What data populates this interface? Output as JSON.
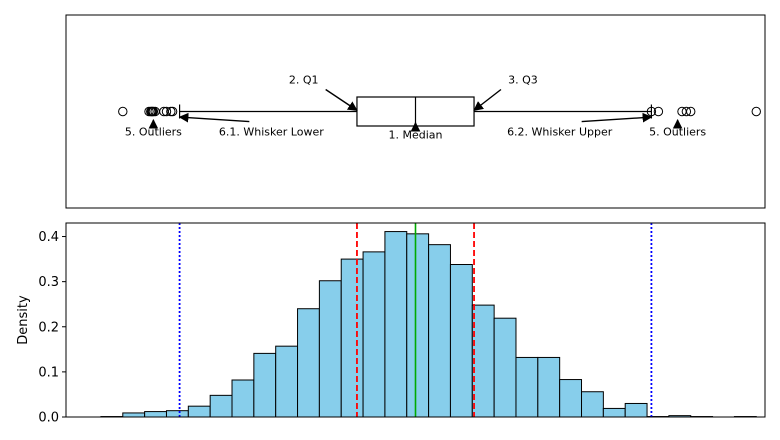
{
  "chart_data": [
    {
      "type": "box",
      "title": "",
      "xlim": [
        -4.0,
        4.0
      ],
      "y_center": 0.0,
      "box": {
        "q1": -0.67,
        "median": 0.0,
        "q3": 0.67,
        "whisker_low": -2.7,
        "whisker_high": 2.7
      },
      "outliers": [
        -3.35,
        -3.05,
        -3.03,
        -3.02,
        -3.01,
        -3.0,
        -2.98,
        -2.88,
        -2.85,
        -2.8,
        -2.78,
        2.7,
        2.78,
        3.05,
        3.1,
        3.15,
        3.9
      ],
      "annotations": [
        {
          "text": "2. Q1",
          "target": {
            "x": -0.67,
            "y": 0.02
          },
          "label": {
            "x": -1.28,
            "y": 0.5
          }
        },
        {
          "text": "3. Q3",
          "target": {
            "x": 0.67,
            "y": 0.02
          },
          "label": {
            "x": 1.23,
            "y": 0.5
          }
        },
        {
          "text": "1. Median",
          "target": {
            "x": 0.0,
            "y": -0.2
          },
          "label": {
            "x": 0.0,
            "y": -0.48
          }
        },
        {
          "text": "5. Outliers",
          "target": {
            "x": -3.0,
            "y": -0.15
          },
          "label": {
            "x": -3.0,
            "y": -0.43
          }
        },
        {
          "text": "6.1. Whisker Lower",
          "target": {
            "x": -2.7,
            "y": -0.1
          },
          "label": {
            "x": -1.65,
            "y": -0.43
          }
        },
        {
          "text": "6.2. Whisker Upper",
          "target": {
            "x": 2.7,
            "y": -0.1
          },
          "label": {
            "x": 1.65,
            "y": -0.43
          }
        },
        {
          "text": "5. Outliers",
          "target": {
            "x": 3.0,
            "y": -0.15
          },
          "label": {
            "x": 3.0,
            "y": -0.43
          }
        }
      ]
    },
    {
      "type": "histogram",
      "xlim": [
        -4.0,
        4.0
      ],
      "ylim": [
        0.0,
        0.43
      ],
      "xlabel": "",
      "ylabel": "Density",
      "yticks": [
        "0.0",
        "0.1",
        "0.2",
        "0.3",
        "0.4"
      ],
      "bins": {
        "edges": [
          -3.6,
          -3.35,
          -3.1,
          -2.85,
          -2.6,
          -2.35,
          -2.1,
          -1.85,
          -1.6,
          -1.35,
          -1.1,
          -0.85,
          -0.6,
          -0.35,
          -0.1,
          0.15,
          0.4,
          0.65,
          0.9,
          1.15,
          1.4,
          1.65,
          1.9,
          2.15,
          2.4,
          2.65,
          2.9,
          3.15,
          3.4,
          3.65,
          3.9
        ],
        "density": [
          0.001,
          0.009,
          0.012,
          0.014,
          0.024,
          0.048,
          0.082,
          0.141,
          0.157,
          0.24,
          0.302,
          0.35,
          0.366,
          0.411,
          0.406,
          0.382,
          0.338,
          0.248,
          0.219,
          0.132,
          0.132,
          0.083,
          0.056,
          0.019,
          0.03,
          0.001,
          0.003,
          0.001,
          0.0,
          0.001
        ]
      },
      "reference_lines": [
        {
          "x": -2.7,
          "style": "dotted",
          "color": "#0000ff"
        },
        {
          "x": -0.67,
          "style": "dashed",
          "color": "#ff0000"
        },
        {
          "x": 0.0,
          "style": "solid",
          "color": "#00aa00"
        },
        {
          "x": 0.67,
          "style": "dashed",
          "color": "#ff0000"
        },
        {
          "x": 2.7,
          "style": "dotted",
          "color": "#0000ff"
        }
      ],
      "colors": {
        "bar_fill": "#87ceeb",
        "bar_edge": "#000000"
      }
    }
  ]
}
